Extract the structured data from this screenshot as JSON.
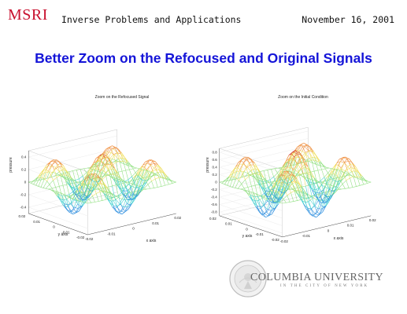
{
  "header": {
    "logo": "MSRI",
    "conference": "Inverse Problems and Applications",
    "date": "November 16, 2001"
  },
  "slide": {
    "title": "Better Zoom on the Refocused and Original Signals"
  },
  "footer": {
    "university": "COLUMBIA UNIVERSITY",
    "subtitle": "IN THE CITY OF NEW YORK",
    "seal_icon": "columbia-seal-icon"
  },
  "chart_data": [
    {
      "type": "surface",
      "title": "Zoom on the Refocused Signal",
      "xlabel": "x axis",
      "ylabel": "y axis",
      "zlabel": "pressure",
      "x_ticks": [
        "-0.02",
        "-0.01",
        "0",
        "0.01",
        "0.02"
      ],
      "y_ticks": [
        "0.02",
        "0.01",
        "0",
        "-0.01",
        "-0.02"
      ],
      "z_ticks": [
        "0.4",
        "0.2",
        "0",
        "-0.2",
        "-0.4"
      ],
      "zlim": [
        -0.5,
        0.5
      ],
      "amplitude": 0.45,
      "colormap": [
        "#1f3fbf",
        "#2f8fdf",
        "#3fcfcf",
        "#8fdf7f",
        "#efdf5f",
        "#ef8f3f",
        "#c81f1f"
      ]
    },
    {
      "type": "surface",
      "title": "Zoom on the Initial Condition",
      "xlabel": "x axis",
      "ylabel": "y axis",
      "zlabel": "pressure",
      "x_ticks": [
        "-0.02",
        "-0.01",
        "0",
        "0.01",
        "0.02"
      ],
      "y_ticks": [
        "0.02",
        "0.01",
        "0",
        "-0.01",
        "-0.02"
      ],
      "z_ticks": [
        "0.8",
        "0.6",
        "0.4",
        "0.2",
        "0",
        "-0.2",
        "-0.4",
        "-0.6",
        "-0.8"
      ],
      "zlim": [
        -0.9,
        0.9
      ],
      "amplitude": 0.85,
      "colormap": [
        "#1f3fbf",
        "#2f8fdf",
        "#3fcfcf",
        "#8fdf7f",
        "#efdf5f",
        "#ef8f3f",
        "#c81f1f"
      ]
    }
  ]
}
